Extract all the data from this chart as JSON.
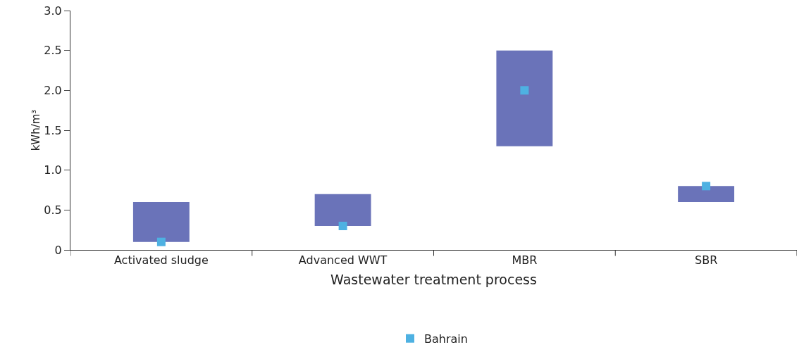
{
  "chart_data": {
    "type": "bar",
    "xlabel": "Wastewater treatment process",
    "ylabel": "kWh/m³",
    "categories": [
      "Activated sludge",
      "Advanced WWT",
      "MBR",
      "SBR"
    ],
    "series": [
      {
        "color": "#6a73b9",
        "base": [
          0.1,
          0.3,
          1.3,
          0.6
        ],
        "values": [
          0.5,
          0.4,
          1.2,
          0.2
        ]
      },
      {
        "type": "scatter",
        "name": "Bahrain",
        "color": "#4eb1e2",
        "values": [
          0.1,
          0.3,
          2.0,
          0.8
        ]
      }
    ],
    "ylim": [
      0,
      3
    ],
    "yticks": [
      0,
      0.5,
      {
        "value": 1,
        "label": "1.0"
      },
      1.5,
      {
        "value": 2,
        "label": "2.0"
      },
      2.5,
      {
        "value": 3,
        "label": "3.0"
      }
    ],
    "grid": false,
    "legend": "bottom",
    "marker": "square"
  }
}
